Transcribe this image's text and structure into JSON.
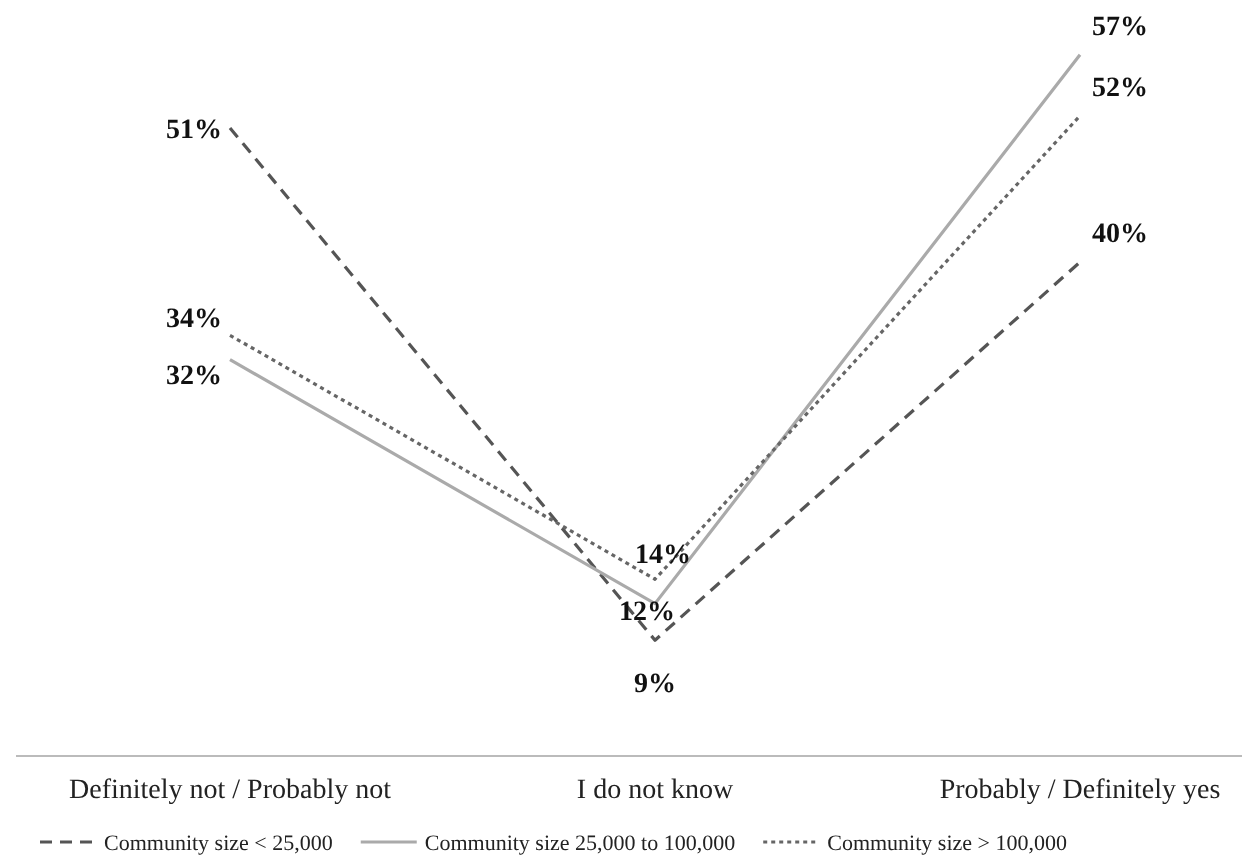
{
  "chart_data": {
    "type": "line",
    "categories": [
      "Definitely not / Probably not",
      "I do not know",
      "Probably / Definitely yes"
    ],
    "series": [
      {
        "name": "Community size < 25,000",
        "color": "#555555",
        "line_style": "dashed",
        "values": [
          51,
          9,
          40
        ],
        "value_labels": [
          "51%",
          "9%",
          "40%"
        ]
      },
      {
        "name": "Community size 25,000 to 100,000",
        "color": "#aaaaaa",
        "line_style": "solid",
        "values": [
          32,
          12,
          57
        ],
        "value_labels": [
          "32%",
          "12%",
          "57%"
        ]
      },
      {
        "name": "Community size > 100,000",
        "color": "#666666",
        "line_style": "dotted",
        "values": [
          34,
          14,
          52
        ],
        "value_labels": [
          "34%",
          "14%",
          "52%"
        ]
      }
    ],
    "legend": "bottom",
    "marker": "none"
  }
}
